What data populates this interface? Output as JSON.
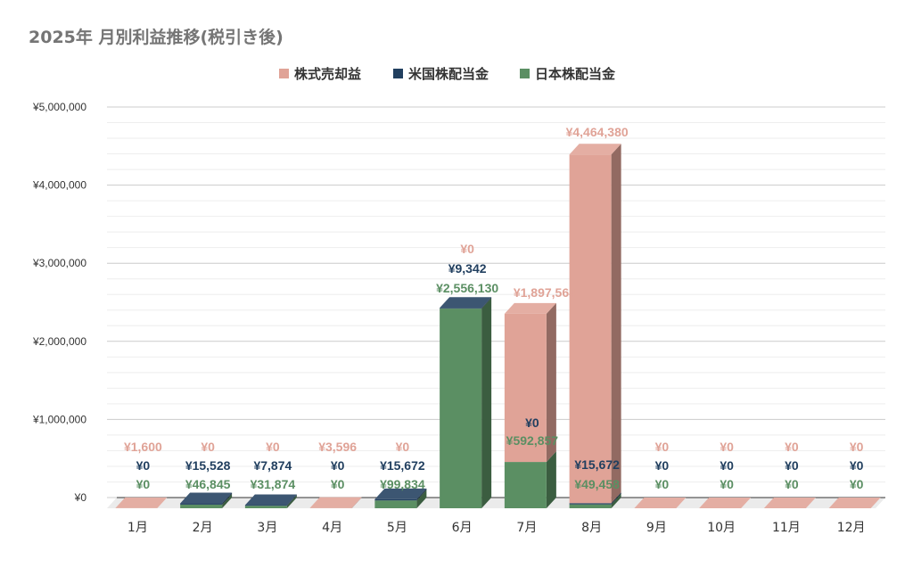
{
  "chart_data": {
    "type": "bar",
    "stacked": true,
    "style": "3d",
    "title": "2025年 月別利益推移(税引き後)",
    "xlabel": "",
    "ylabel": "",
    "ylim": [
      0,
      5000000
    ],
    "yticks": [
      0,
      1000000,
      2000000,
      3000000,
      4000000,
      5000000
    ],
    "ytick_labels": [
      "¥0",
      "¥1,000,000",
      "¥2,000,000",
      "¥3,000,000",
      "¥4,000,000",
      "¥5,000,000"
    ],
    "grid": true,
    "legend_position": "top",
    "categories": [
      "1月",
      "2月",
      "3月",
      "4月",
      "5月",
      "6月",
      "7月",
      "8月",
      "9月",
      "10月",
      "11月",
      "12月"
    ],
    "series": [
      {
        "name": "株式売却益",
        "color": "#e0a397",
        "values": [
          1600,
          0,
          0,
          3596,
          0,
          0,
          1897564,
          4464380,
          0,
          0,
          0,
          0
        ],
        "labels": [
          "¥1,600",
          "¥0",
          "¥0",
          "¥3,596",
          "¥0",
          "¥0",
          "¥1,897,564",
          "¥4,464,380",
          "¥0",
          "¥0",
          "¥0",
          "¥0"
        ]
      },
      {
        "name": "米国株配当金",
        "color": "#213f5f",
        "values": [
          0,
          15528,
          7874,
          0,
          15672,
          9342,
          0,
          15672,
          0,
          0,
          0,
          0
        ],
        "labels": [
          "¥0",
          "¥15,528",
          "¥7,874",
          "¥0",
          "¥15,672",
          "¥9,342",
          "¥0",
          "¥15,672",
          "¥0",
          "¥0",
          "¥0",
          "¥0"
        ]
      },
      {
        "name": "日本株配当金",
        "color": "#5b8f63",
        "values": [
          0,
          46845,
          31874,
          0,
          99834,
          2556130,
          592857,
          49458,
          0,
          0,
          0,
          0
        ],
        "labels": [
          "¥0",
          "¥46,845",
          "¥31,874",
          "¥0",
          "¥99,834",
          "¥2,556,130",
          "¥592,857",
          "¥49,458",
          "¥0",
          "¥0",
          "¥0",
          "¥0"
        ]
      }
    ]
  }
}
